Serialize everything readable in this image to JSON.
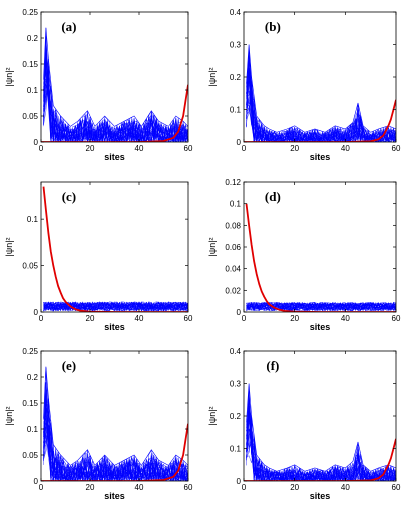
{
  "figure": {
    "background": "#ffffff"
  },
  "chart_data": [
    {
      "type": "line",
      "panel_label": "(a)",
      "xlabel": "sites",
      "ylabel": "|ψn|²",
      "xlim": [
        0,
        60
      ],
      "ylim": [
        0,
        0.25
      ],
      "xticks": [
        "0",
        "20",
        "40",
        "60"
      ],
      "yticks": [
        "0",
        "0.05",
        "0.1",
        "0.15",
        "0.2",
        "0.25"
      ],
      "series": [
        {
          "color": "#0000ff",
          "style": "many overlapping extended states",
          "peak_near_x": 0,
          "peak_value": 0.22,
          "typical_max": 0.06,
          "x": [
            1,
            2,
            3,
            5,
            8,
            10,
            12,
            15,
            19,
            22,
            26,
            30,
            34,
            38,
            41,
            45,
            48,
            52,
            55,
            58,
            60
          ],
          "values": [
            0.12,
            0.22,
            0.16,
            0.07,
            0.05,
            0.04,
            0.03,
            0.04,
            0.06,
            0.03,
            0.05,
            0.03,
            0.04,
            0.05,
            0.03,
            0.06,
            0.04,
            0.03,
            0.05,
            0.04,
            0.03
          ]
        },
        {
          "color": "#e00000",
          "style": "edge-localized state at right end",
          "x": [
            0,
            10,
            20,
            30,
            40,
            50,
            54,
            56,
            58,
            59,
            60
          ],
          "values": [
            0,
            0,
            0,
            0,
            0,
            0.002,
            0.008,
            0.02,
            0.05,
            0.08,
            0.11
          ]
        }
      ]
    },
    {
      "type": "line",
      "panel_label": "(b)",
      "xlabel": "sites",
      "ylabel": "|ψn|²",
      "xlim": [
        0,
        60
      ],
      "ylim": [
        0,
        0.4
      ],
      "xticks": [
        "0",
        "20",
        "40",
        "60"
      ],
      "yticks": [
        "0",
        "0.1",
        "0.2",
        "0.3",
        "0.4"
      ],
      "series": [
        {
          "color": "#0000ff",
          "style": "many overlapping extended states",
          "peak_near_x": 1,
          "peak_value": 0.3,
          "typical_max": 0.07,
          "x": [
            1,
            2,
            3,
            5,
            8,
            10,
            13,
            17,
            20,
            24,
            28,
            32,
            36,
            40,
            43,
            45,
            47,
            50,
            53,
            57,
            60
          ],
          "values": [
            0.18,
            0.3,
            0.2,
            0.08,
            0.05,
            0.04,
            0.03,
            0.04,
            0.05,
            0.03,
            0.04,
            0.03,
            0.05,
            0.04,
            0.06,
            0.12,
            0.05,
            0.03,
            0.04,
            0.05,
            0.04
          ]
        },
        {
          "color": "#e00000",
          "style": "edge-localized state at right end",
          "x": [
            0,
            10,
            20,
            30,
            40,
            50,
            53,
            55,
            57,
            58,
            59,
            60
          ],
          "values": [
            0,
            0,
            0,
            0,
            0,
            0.002,
            0.008,
            0.02,
            0.05,
            0.07,
            0.1,
            0.13
          ]
        }
      ]
    },
    {
      "type": "line",
      "panel_label": "(c)",
      "xlabel": "sites",
      "ylabel": "|ψn|²",
      "xlim": [
        0,
        60
      ],
      "ylim": [
        0,
        0.14
      ],
      "xticks": [
        "0",
        "20",
        "40",
        "60"
      ],
      "yticks": [
        "0",
        "0.05",
        "0.1"
      ],
      "series": [
        {
          "color": "#0000ff",
          "style": "dense flat band of extended states",
          "band_low": 0.001,
          "band_high": 0.011,
          "x": [
            1,
            60
          ],
          "values": [
            0.011,
            0.011
          ]
        },
        {
          "color": "#e00000",
          "style": "edge-localized state at left end",
          "x": [
            1,
            2,
            3,
            4,
            5,
            6,
            7,
            8,
            9,
            10,
            12,
            14,
            16,
            20,
            30,
            40,
            50,
            60
          ],
          "values": [
            0.135,
            0.11,
            0.085,
            0.065,
            0.05,
            0.038,
            0.028,
            0.021,
            0.015,
            0.011,
            0.006,
            0.003,
            0.0015,
            0.0004,
            0,
            0,
            0,
            0
          ]
        }
      ]
    },
    {
      "type": "line",
      "panel_label": "(d)",
      "xlabel": "sites",
      "ylabel": "|ψn|²",
      "xlim": [
        0,
        60
      ],
      "ylim": [
        0,
        0.12
      ],
      "xticks": [
        "0",
        "20",
        "40",
        "60"
      ],
      "yticks": [
        "0",
        "0.02",
        "0.04",
        "0.06",
        "0.08",
        "0.1",
        "0.12"
      ],
      "series": [
        {
          "color": "#0000ff",
          "style": "dense flat band of extended states",
          "band_low": 0.001,
          "band_high": 0.009,
          "x": [
            1,
            60
          ],
          "values": [
            0.009,
            0.009
          ]
        },
        {
          "color": "#e00000",
          "style": "edge-localized state at left end",
          "x": [
            1,
            2,
            3,
            4,
            5,
            6,
            7,
            8,
            9,
            10,
            12,
            14,
            16,
            20,
            30,
            40,
            50,
            60
          ],
          "values": [
            0.1,
            0.08,
            0.062,
            0.047,
            0.035,
            0.026,
            0.019,
            0.014,
            0.01,
            0.007,
            0.004,
            0.002,
            0.001,
            0.0003,
            0,
            0,
            0,
            0
          ]
        }
      ]
    },
    {
      "type": "line",
      "panel_label": "(e)",
      "xlabel": "sites",
      "ylabel": "|ψn|²",
      "xlim": [
        0,
        60
      ],
      "ylim": [
        0,
        0.25
      ],
      "xticks": [
        "0",
        "20",
        "40",
        "60"
      ],
      "yticks": [
        "0",
        "0.05",
        "0.1",
        "0.15",
        "0.2",
        "0.25"
      ],
      "series": [
        {
          "color": "#0000ff",
          "style": "many overlapping extended states",
          "peak_near_x": 0,
          "peak_value": 0.22,
          "typical_max": 0.06,
          "x": [
            1,
            2,
            3,
            5,
            8,
            10,
            12,
            15,
            19,
            22,
            26,
            30,
            34,
            38,
            41,
            45,
            48,
            52,
            55,
            58,
            60
          ],
          "values": [
            0.12,
            0.22,
            0.16,
            0.07,
            0.05,
            0.04,
            0.03,
            0.04,
            0.06,
            0.03,
            0.05,
            0.03,
            0.04,
            0.05,
            0.03,
            0.06,
            0.04,
            0.03,
            0.05,
            0.04,
            0.03
          ]
        },
        {
          "color": "#e00000",
          "style": "edge-localized state at right end",
          "x": [
            0,
            10,
            20,
            30,
            40,
            50,
            54,
            56,
            58,
            59,
            60
          ],
          "values": [
            0,
            0,
            0,
            0,
            0,
            0.002,
            0.008,
            0.02,
            0.05,
            0.08,
            0.11
          ]
        }
      ]
    },
    {
      "type": "line",
      "panel_label": "(f)",
      "xlabel": "sites",
      "ylabel": "|ψn|²",
      "xlim": [
        0,
        60
      ],
      "ylim": [
        0,
        0.4
      ],
      "xticks": [
        "0",
        "20",
        "40",
        "60"
      ],
      "yticks": [
        "0",
        "0.1",
        "0.2",
        "0.3",
        "0.4"
      ],
      "series": [
        {
          "color": "#0000ff",
          "style": "many overlapping extended states",
          "peak_near_x": 1,
          "peak_value": 0.3,
          "typical_max": 0.07,
          "x": [
            1,
            2,
            3,
            5,
            8,
            10,
            13,
            17,
            20,
            24,
            28,
            32,
            36,
            40,
            43,
            45,
            47,
            50,
            53,
            57,
            60
          ],
          "values": [
            0.18,
            0.3,
            0.2,
            0.08,
            0.05,
            0.04,
            0.03,
            0.04,
            0.05,
            0.03,
            0.04,
            0.03,
            0.05,
            0.04,
            0.06,
            0.12,
            0.05,
            0.03,
            0.04,
            0.05,
            0.04
          ]
        },
        {
          "color": "#e00000",
          "style": "edge-localized state at right end",
          "x": [
            0,
            10,
            20,
            30,
            40,
            50,
            53,
            55,
            57,
            58,
            59,
            60
          ],
          "values": [
            0,
            0,
            0,
            0,
            0,
            0.002,
            0.008,
            0.02,
            0.05,
            0.07,
            0.1,
            0.13
          ]
        }
      ]
    }
  ]
}
